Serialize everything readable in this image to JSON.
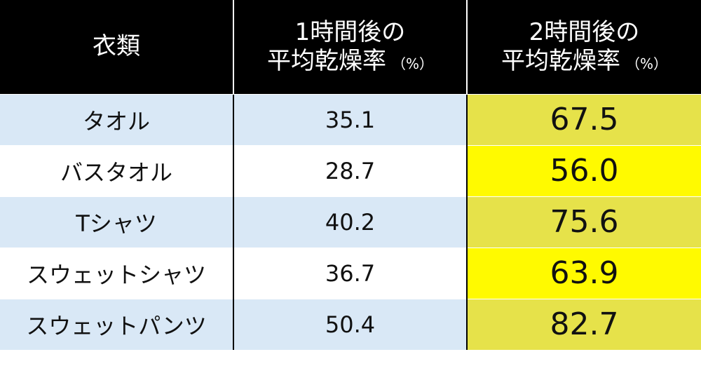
{
  "chart_data": {
    "type": "table",
    "columns": [
      {
        "line1": "衣類",
        "line2": "",
        "unit": ""
      },
      {
        "line1": "1時間後の",
        "line2": "平均乾燥率",
        "unit": "（%）"
      },
      {
        "line1": "2時間後の",
        "line2": "平均乾燥率",
        "unit": "（%）"
      }
    ],
    "rows": [
      {
        "item": "タオル",
        "after_1h": "35.1",
        "after_2h": "67.5"
      },
      {
        "item": "バスタオル",
        "after_1h": "28.7",
        "after_2h": "56.0"
      },
      {
        "item": "Tシャツ",
        "after_1h": "40.2",
        "after_2h": "75.6"
      },
      {
        "item": "スウェットシャツ",
        "after_1h": "36.7",
        "after_2h": "63.9"
      },
      {
        "item": "スウェットパンツ",
        "after_1h": "50.4",
        "after_2h": "82.7"
      }
    ]
  },
  "colors": {
    "header_bg": "#000000",
    "header_text": "#ffffff",
    "row_stripe": "#d9e8f6",
    "highlight_dark": "#e6e24a",
    "highlight_bright": "#fffa00"
  }
}
